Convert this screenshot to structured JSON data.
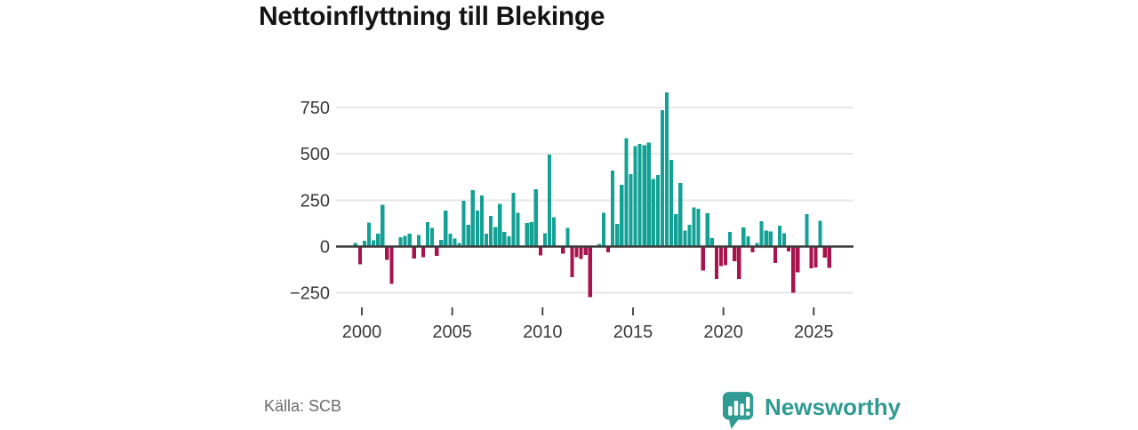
{
  "title": "Nettoinflyttning till Blekinge",
  "source": "Källa: SCB",
  "branding": {
    "logo_text": "Newsworthy",
    "logo_icon": "bar-chart-speech-bubble"
  },
  "colors": {
    "positive_bar": "#14a195",
    "negative_bar": "#a8134e",
    "grid_line": "#e7e7e7",
    "zero_line": "#3a3a3a",
    "axis_text": "#3a3a3a",
    "title_text": "#141414",
    "source_text": "#6b6b6b",
    "brand_teal": "#2f9b93",
    "background": "#ffffff"
  },
  "chart_data": {
    "type": "bar",
    "title": "Nettoinflyttning till Blekinge",
    "xlabel": "",
    "ylabel": "",
    "frequency": "quarterly",
    "start_period": "1999-Q4",
    "end_period": "2026-Q1",
    "x_tick_years": [
      2000,
      2005,
      2010,
      2015,
      2020,
      2025
    ],
    "y_ticks": [
      750,
      500,
      250,
      0,
      -250
    ],
    "y_tick_labels": [
      "750",
      "500",
      "250",
      "0",
      "−250"
    ],
    "ylim": [
      -300,
      870
    ],
    "grid": true,
    "legend": false,
    "values": [
      20,
      -95,
      30,
      130,
      33,
      70,
      225,
      -73,
      -200,
      5,
      50,
      57,
      70,
      -65,
      62,
      -57,
      131,
      100,
      -50,
      35,
      195,
      70,
      43,
      18,
      246,
      118,
      305,
      195,
      275,
      70,
      166,
      105,
      230,
      78,
      54,
      290,
      182,
      5,
      126,
      131,
      310,
      -49,
      73,
      496,
      158,
      5,
      -38,
      100,
      -165,
      -58,
      -68,
      -45,
      -272,
      5,
      15,
      182,
      -30,
      409,
      121,
      334,
      585,
      390,
      541,
      553,
      546,
      561,
      364,
      386,
      736,
      830,
      466,
      174,
      342,
      86,
      118,
      211,
      203,
      -129,
      179,
      46,
      -175,
      -105,
      -100,
      78,
      -78,
      -174,
      102,
      54,
      -30,
      18,
      137,
      86,
      81,
      -89,
      113,
      73,
      -26,
      -249,
      -140,
      0,
      174,
      -118,
      -113,
      140,
      -61,
      -114
    ]
  }
}
